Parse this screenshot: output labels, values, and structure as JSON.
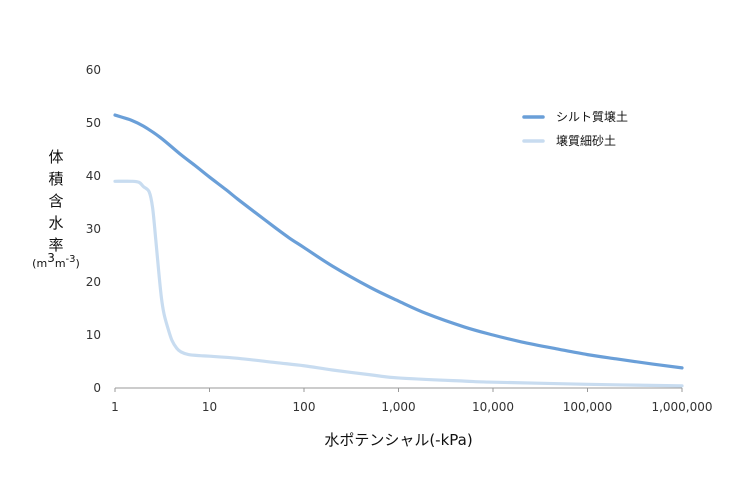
{
  "chart_data": {
    "type": "line",
    "title": "",
    "xlabel": "水ポテンシャル(-kPa)",
    "ylabel": "体積含水率",
    "yunit": {
      "base1": "(m",
      "exp1": "3",
      "base2": "m",
      "exp2": "-3",
      "close": ")"
    },
    "x_scale": "log",
    "xlim": [
      1,
      1000000
    ],
    "ylim": [
      0,
      60
    ],
    "x_ticks": [
      1,
      10,
      100,
      1000,
      10000,
      100000,
      1000000
    ],
    "x_tick_labels": [
      "1",
      "10",
      "100",
      "1,000",
      "10,000",
      "100,000",
      "1,000,000"
    ],
    "y_ticks": [
      0,
      10,
      20,
      30,
      40,
      50,
      60
    ],
    "y_tick_labels": [
      "0",
      "10",
      "20",
      "30",
      "40",
      "50",
      "60"
    ],
    "grid": false,
    "legend_position": "top-right",
    "series": [
      {
        "name": "シルト質壌土",
        "color": "#6a9fd8",
        "x": [
          1,
          1.5,
          2,
          3,
          5,
          7,
          10,
          15,
          20,
          30,
          50,
          70,
          100,
          200,
          500,
          1000,
          2000,
          5000,
          10000,
          20000,
          50000,
          100000,
          200000,
          500000,
          1000000
        ],
        "y": [
          51.5,
          50.5,
          49.4,
          47.3,
          44.0,
          42.0,
          39.8,
          37.4,
          35.6,
          33.2,
          30.2,
          28.3,
          26.5,
          23.0,
          19.0,
          16.4,
          14.0,
          11.5,
          10.0,
          8.7,
          7.3,
          6.3,
          5.5,
          4.5,
          3.8
        ]
      },
      {
        "name": "壌質細砂土",
        "color": "#c8dcf0",
        "x": [
          1,
          1.5,
          1.8,
          2.0,
          2.3,
          2.5,
          2.7,
          2.9,
          3.1,
          3.3,
          3.6,
          4.0,
          4.5,
          5,
          6,
          8,
          10,
          20,
          50,
          100,
          200,
          500,
          1000,
          5000,
          10000,
          100000,
          1000000
        ],
        "y": [
          39.0,
          39.0,
          38.8,
          38.0,
          37.0,
          34.0,
          28.0,
          22.0,
          17.0,
          14.0,
          11.5,
          9.0,
          7.5,
          6.8,
          6.3,
          6.1,
          6.0,
          5.6,
          4.8,
          4.2,
          3.4,
          2.5,
          1.9,
          1.3,
          1.1,
          0.7,
          0.4
        ]
      }
    ]
  }
}
